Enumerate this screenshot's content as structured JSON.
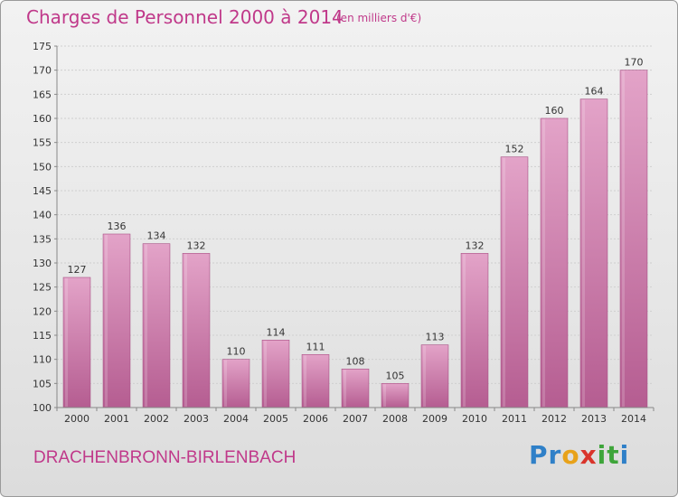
{
  "header": {
    "title": "Charges de Personnel 2000 à 2014",
    "unit": "(en milliers d'€)"
  },
  "footer": {
    "commune": "DRACHENBRONN-BIRLENBACH"
  },
  "logo": {
    "text": "Proxiti",
    "letters": [
      {
        "ch": "P",
        "color": "#2f80c8"
      },
      {
        "ch": "r",
        "color": "#2f80c8"
      },
      {
        "ch": "o",
        "color": "#e8a21a"
      },
      {
        "ch": "x",
        "color": "#d9342b"
      },
      {
        "ch": "i",
        "color": "#3ea53a"
      },
      {
        "ch": "t",
        "color": "#3ea53a"
      },
      {
        "ch": "i",
        "color": "#2f80c8"
      }
    ]
  },
  "colors": {
    "bar": "#cc77a8",
    "bar_dark": "#b85d92",
    "accent": "#c0398a"
  },
  "chart_data": {
    "type": "bar",
    "title": "Charges de Personnel 2000 à 2014",
    "subtitle": "(en milliers d'€)",
    "categories": [
      "2000",
      "2001",
      "2002",
      "2003",
      "2004",
      "2005",
      "2006",
      "2007",
      "2008",
      "2009",
      "2010",
      "2011",
      "2012",
      "2013",
      "2014"
    ],
    "values": [
      127,
      136,
      134,
      132,
      110,
      114,
      111,
      108,
      105,
      113,
      132,
      152,
      160,
      164,
      170
    ],
    "ylim": [
      100,
      175
    ],
    "yticks": [
      100,
      105,
      110,
      115,
      120,
      125,
      130,
      135,
      140,
      145,
      150,
      155,
      160,
      165,
      170,
      175
    ],
    "grid": true,
    "data_labels": true
  }
}
